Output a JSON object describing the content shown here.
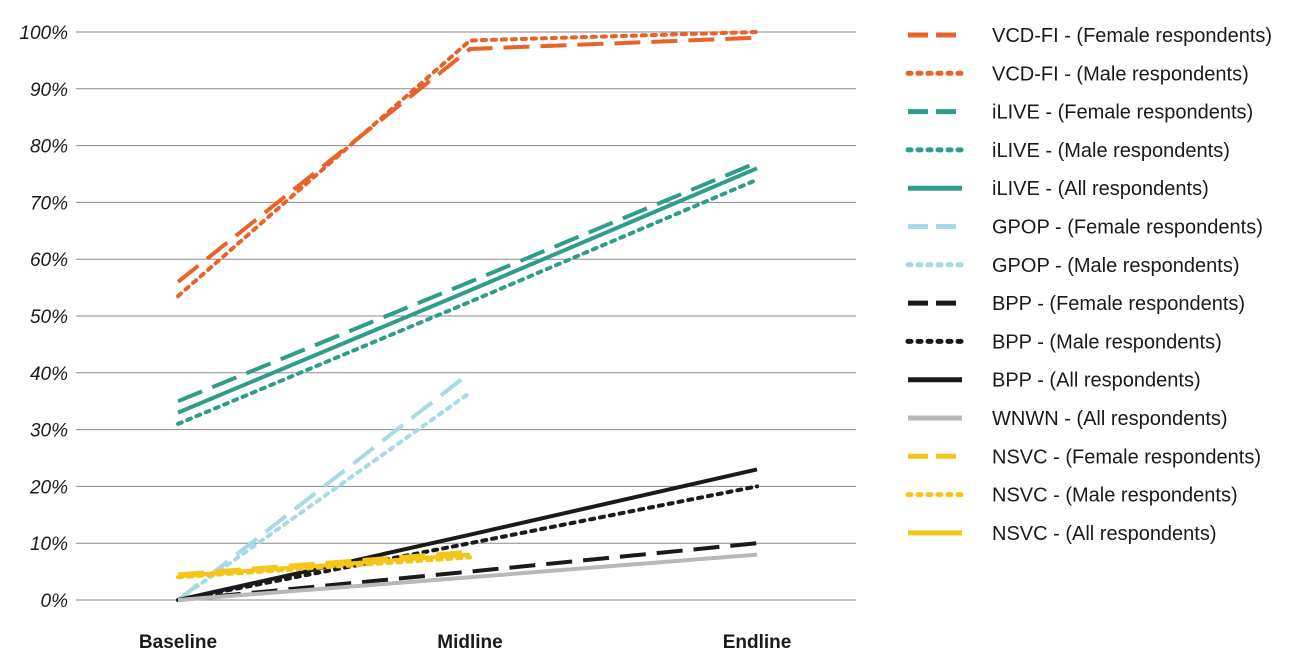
{
  "chart_data": {
    "type": "line",
    "x": [
      "Baseline",
      "Midline",
      "Endline"
    ],
    "yticks": [
      "0%",
      "10%",
      "20%",
      "30%",
      "40%",
      "50%",
      "60%",
      "70%",
      "80%",
      "90%",
      "100%"
    ],
    "ylim": [
      0,
      100
    ],
    "grid": true,
    "legend_position": "right",
    "series": [
      {
        "name": "VCD-FI - (Female respondents)",
        "color": "#e8632a",
        "dash": "long",
        "values": [
          56,
          97,
          99
        ]
      },
      {
        "name": "VCD-FI - (Male respondents)",
        "color": "#e8632a",
        "dash": "dot",
        "values": [
          53.5,
          98.5,
          100
        ]
      },
      {
        "name": "iLIVE - (Female respondents)",
        "color": "#2f9c8c",
        "dash": "long",
        "values": [
          35,
          56,
          77
        ]
      },
      {
        "name": "iLIVE - (Male respondents)",
        "color": "#2f9c8c",
        "dash": "dot",
        "values": [
          31,
          52.5,
          74
        ]
      },
      {
        "name": "iLIVE - (All respondents)",
        "color": "#2f9c8c",
        "dash": "solid",
        "values": [
          33,
          54.5,
          76
        ]
      },
      {
        "name": "GPOP - (Female respondents)",
        "color": "#a9d9e6",
        "dash": "long",
        "values": [
          0,
          40,
          null
        ]
      },
      {
        "name": "GPOP - (Male respondents)",
        "color": "#a9d9e6",
        "dash": "dot",
        "values": [
          0,
          36.5,
          null
        ]
      },
      {
        "name": "BPP - (Female respondents)",
        "color": "#1a1a1a",
        "dash": "long",
        "values": [
          0,
          5,
          10
        ]
      },
      {
        "name": "BPP - (Male respondents)",
        "color": "#1a1a1a",
        "dash": "dot",
        "values": [
          0,
          10,
          20
        ]
      },
      {
        "name": "BPP - (All respondents)",
        "color": "#1a1a1a",
        "dash": "solid",
        "values": [
          0,
          11.5,
          23
        ]
      },
      {
        "name": "WNWN - (All respondents)",
        "color": "#b8b8b8",
        "dash": "solid",
        "values": [
          0,
          4,
          8
        ]
      },
      {
        "name": "NSVC - (Female respondents)",
        "color": "#f5c518",
        "dash": "long",
        "values": [
          4.5,
          8.5,
          null
        ]
      },
      {
        "name": "NSVC - (Male respondents)",
        "color": "#f5c518",
        "dash": "dot",
        "values": [
          4,
          7.5,
          null
        ]
      },
      {
        "name": "NSVC - (All respondents)",
        "color": "#f5c518",
        "dash": "solid",
        "values": [
          4.2,
          8,
          null
        ]
      }
    ]
  }
}
